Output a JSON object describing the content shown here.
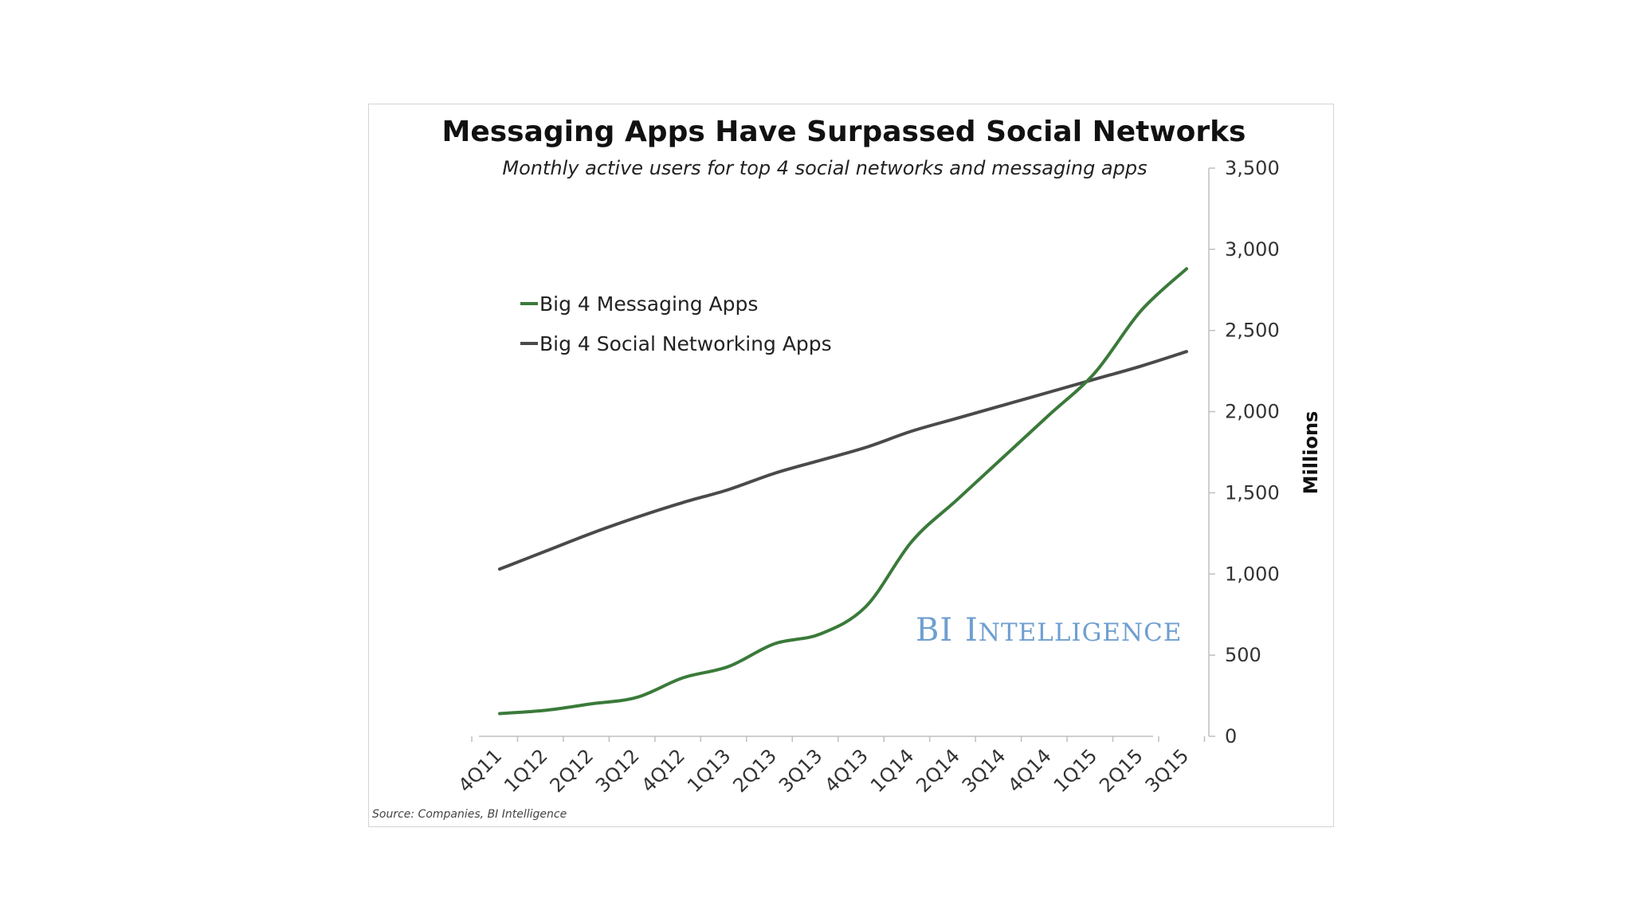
{
  "chart_data": {
    "type": "line",
    "title": "Messaging Apps Have Surpassed Social Networks",
    "subtitle": "Monthly active users for top 4 social networks and messaging apps",
    "xlabel": "",
    "ylabel": "Millions",
    "categories": [
      "4Q11",
      "1Q12",
      "2Q12",
      "3Q12",
      "4Q12",
      "1Q13",
      "2Q13",
      "3Q13",
      "4Q13",
      "1Q14",
      "2Q14",
      "3Q14",
      "4Q14",
      "1Q15",
      "2Q15",
      "3Q15"
    ],
    "series": [
      {
        "name": "Big 4 Messaging Apps",
        "color": "#3a7a3a",
        "values": [
          140,
          160,
          200,
          240,
          360,
          430,
          570,
          630,
          800,
          1200,
          1460,
          1720,
          1980,
          2240,
          2620,
          2880
        ]
      },
      {
        "name": "Big 4 Social Networking Apps",
        "color": "#4a4a4a",
        "values": [
          1030,
          1140,
          1250,
          1350,
          1440,
          1520,
          1620,
          1700,
          1780,
          1880,
          1960,
          2040,
          2120,
          2200,
          2280,
          2370
        ]
      }
    ],
    "yticks": [
      "3,500",
      "3,000",
      "2,500",
      "2,000",
      "1,500",
      "1,000",
      "500",
      "0"
    ],
    "ytick_values": [
      3500,
      3000,
      2500,
      2000,
      1500,
      1000,
      500,
      0
    ],
    "ylim": [
      0,
      3500
    ],
    "y_axis_side": "right",
    "grid": false,
    "legend_position": "top-left"
  },
  "source": "Source: Companies, BI Intelligence",
  "watermark": {
    "initials": "BI",
    "word": "Intelligence",
    "color": "#6f9fd0"
  }
}
